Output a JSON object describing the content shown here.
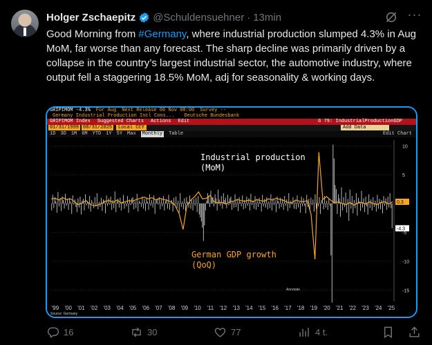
{
  "tweet": {
    "author_name": "Holger Zschaepitz",
    "handle": "@Schuldensuehner",
    "separator": "·",
    "time": "13min",
    "text_before": "Good Morning from ",
    "hashtag": "#Germany",
    "text_after": ", where industrial production slumped 4.3% in Aug MoM, far worse than any forecast. The sharp decline was primarily driven by a collapse in the country’s largest industrial sector, the automotive industry, where output fell a staggering 18.5% MoM, adj for seasonality & working days.",
    "accent_color": "#1d9bf0"
  },
  "terminal": {
    "ticker": "GRIPIMOM -4.3%",
    "period": "For Aug",
    "next_release": "Next Release 06 Nov 08:00",
    "survey": "Survey --",
    "series_name": "Germany Industrial Production Incl Cons...",
    "source_org": "Deutsche Bundesbank",
    "index_label": "GRIPIMOM Index",
    "suggested": "Suggested Charts",
    "actions_menu": "Actions",
    "edit_menu": "Edit",
    "chart_title": "G 79: IndustrialProductionGDP",
    "date_start": "01/31/1999",
    "date_end": "08/31/2025",
    "currency": "Local CCY",
    "add_data": "Add Data",
    "periods": [
      "1D",
      "3D",
      "1M",
      "6M",
      "YTD",
      "1Y",
      "5Y",
      "Max"
    ],
    "frequency": "Monthly",
    "table": "Table",
    "edit_chart": "Edit Chart",
    "annotation_1_line1": "Industrial production",
    "annotation_1_line2": "(MoM)",
    "annotation_2_line1": "German GDP growth",
    "annotation_2_line2": "(QoQ)",
    "annotate": "Annotate",
    "source": "Source: Germany"
  },
  "chart_data": {
    "type": "bar",
    "x_tick_labels": [
      "'99",
      "'00",
      "'01",
      "'02",
      "'03",
      "'04",
      "'05",
      "'06",
      "'07",
      "'08",
      "'09",
      "'10",
      "'11",
      "'12",
      "'13",
      "'14",
      "'15",
      "'16",
      "'17",
      "'18",
      "'19",
      "'20",
      "'21",
      "'22",
      "'23",
      "'24",
      "'25"
    ],
    "y_tick_labels": [
      "10",
      "5",
      "-5",
      "-10",
      "-15"
    ],
    "ylim": [
      -17,
      11
    ],
    "last_values": [
      "0.3",
      "-4.3"
    ],
    "series": [
      {
        "name": "Industrial production (MoM)",
        "type": "bar",
        "color": "#c8c8c8"
      },
      {
        "name": "German GDP growth (QoQ)",
        "type": "line",
        "color": "#f5a623"
      }
    ],
    "industrial_production_mom": [
      -1.2,
      1.5,
      -0.8,
      1.1,
      0.4,
      -1.6,
      2.0,
      -0.5,
      0.9,
      -1.3,
      1.2,
      0.6,
      -0.9,
      1.7,
      -0.4,
      0.8,
      -1.1,
      1.0,
      0.3,
      -1.8,
      1.4,
      -0.2,
      0.7,
      -0.6,
      -1.5,
      0.9,
      -0.7,
      1.2,
      -1.9,
      0.5,
      0.8,
      -1.2,
      1.6,
      -0.3,
      0.4,
      -0.9,
      1.3,
      -1.4,
      0.6,
      0.2,
      -0.8,
      1.1,
      -0.5,
      1.8,
      -1.0,
      0.3,
      -0.6,
      1.0,
      -1.3,
      0.7,
      0.5,
      -1.7,
      1.4,
      -0.4,
      0.9,
      -0.2,
      1.2,
      -1.1,
      0.6,
      -0.8,
      2.1,
      -1.5,
      0.4,
      0.8,
      -0.7,
      1.0,
      -1.2,
      0.3,
      1.5,
      -0.9,
      0.2,
      -0.5,
      1.3,
      -1.6,
      0.7,
      -0.3,
      0.9,
      1.1,
      -1.0,
      0.4,
      -0.8,
      1.7,
      -1.4,
      0.5,
      0.2,
      -0.6,
      1.2,
      -0.9,
      0.8,
      -1.3,
      1.0,
      0.3,
      -1.1,
      1.6,
      -0.4,
      0.6,
      -0.7,
      1.4,
      -1.8,
      0.5,
      0.9,
      -0.2,
      1.1,
      -1.0,
      0.7,
      -0.5,
      1.3,
      -1.2,
      0.4,
      0.8,
      -0.9,
      1.5,
      -1.1,
      0.2,
      0.6,
      -1.4,
      1.0,
      -0.3,
      1.2,
      -0.8,
      0.5,
      -1.6,
      1.8,
      -0.6,
      0.4,
      -1.0,
      0.9,
      -1.3,
      1.1,
      0.3,
      -0.7,
      1.4,
      -0.9,
      0.6,
      -1.2,
      0.8,
      -0.4,
      1.0,
      -1.5,
      1.3,
      -1.9,
      -2.4,
      -3.1,
      -4.2,
      -6.5,
      -3.8,
      -1.2,
      0.5,
      1.8,
      1.4,
      -0.6,
      2.2,
      0.8,
      1.1,
      -0.5,
      1.6,
      0.9,
      -1.2,
      2.4,
      0.7,
      -0.4,
      1.3,
      -0.9,
      1.8,
      0.6,
      1.0,
      -0.8,
      1.5,
      -0.3,
      0.9,
      1.2,
      -1.1,
      0.4,
      -0.7,
      1.6,
      -0.6,
      0.8,
      -1.3,
      1.1,
      0.3,
      -0.5,
      1.4,
      -1.0,
      0.6,
      -0.8,
      1.2,
      -0.4,
      0.9,
      -1.2,
      1.7,
      -0.3,
      0.5,
      -0.9,
      1.3,
      -1.1,
      0.7,
      -0.6,
      1.0,
      0.2,
      -1.4,
      1.5,
      -0.5,
      0.8,
      -0.7,
      1.1,
      -1.0,
      0.4,
      -0.8,
      1.6,
      -1.2,
      0.9,
      -0.3,
      0.6,
      -1.5,
      1.2,
      0.4,
      -0.9,
      1.0,
      -0.6,
      0.8,
      -1.1,
      1.3,
      -0.4,
      0.7,
      -1.3,
      1.8,
      -0.8,
      0.5,
      -0.2,
      1.1,
      -0.9,
      0.6,
      -1.0,
      1.4,
      -0.7,
      0.3,
      -1.6,
      1.2,
      -0.5,
      0.9,
      -0.4,
      -1.7,
      1.5,
      -0.6,
      0.8,
      -1.2,
      1.0,
      -0.3,
      0.7,
      -1.4,
      1.6,
      -0.9,
      0.4,
      -0.5,
      1.1,
      -1.8,
      0.6,
      0.9,
      -1.0,
      1.3,
      -0.7,
      0.5,
      -1.1,
      0.8,
      -0.4,
      -9.0,
      -17.2,
      10.2,
      7.8,
      3.2,
      2.5,
      -1.8,
      1.6,
      0.9,
      -2.3,
      2.8,
      -1.2,
      1.1,
      -0.6,
      1.9,
      -1.6,
      0.8,
      -3.0,
      2.4,
      -0.9,
      1.3,
      -1.7,
      0.6,
      -0.8,
      1.8,
      -2.1,
      1.0,
      0.4,
      -1.3,
      2.2,
      -0.7,
      0.9,
      -1.5,
      1.2,
      -0.5,
      -1.9,
      1.6,
      -0.8,
      0.7,
      -1.2,
      1.1,
      -0.6,
      0.5,
      -1.4,
      1.5,
      -0.9,
      0.8,
      -1.0,
      0.6,
      -1.7,
      1.3,
      -0.4,
      0.9,
      -1.1,
      1.2,
      -0.7,
      1.8,
      -0.8,
      -4.3
    ],
    "gdp_growth_qoq": [
      0.8,
      0.9,
      0.6,
      1.0,
      0.7,
      0.8,
      0.3,
      -0.2,
      0.1,
      0.5,
      -0.1,
      -0.4,
      -0.3,
      0.0,
      0.4,
      0.5,
      0.2,
      0.6,
      0.1,
      0.3,
      0.5,
      0.4,
      0.7,
      0.9,
      1.1,
      0.8,
      1.0,
      0.6,
      0.9,
      0.7,
      0.5,
      0.3,
      -0.4,
      -1.8,
      -4.5,
      -0.3,
      0.6,
      1.2,
      2.0,
      0.8,
      0.9,
      1.4,
      0.3,
      0.1,
      0.2,
      -0.1,
      0.3,
      0.4,
      0.7,
      0.5,
      0.4,
      0.6,
      0.3,
      0.7,
      0.5,
      0.4,
      0.8,
      0.6,
      0.9,
      0.7,
      0.5,
      0.2,
      0.1,
      0.6,
      0.4,
      0.3,
      0.5,
      -1.9,
      -9.7,
      8.9,
      0.7,
      1.2,
      0.6,
      0.1,
      0.3,
      0.0,
      -0.2,
      0.2,
      -0.3,
      0.1,
      0.2,
      -0.1,
      0.3,
      0.0,
      -0.2,
      0.2,
      0.3,
      -0.1,
      0.3
    ],
    "xlabel": "",
    "ylabel": ""
  },
  "actions": {
    "replies": "16",
    "reposts": "30",
    "likes": "77",
    "views": "4 t."
  }
}
